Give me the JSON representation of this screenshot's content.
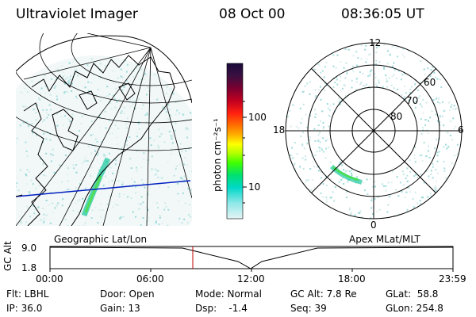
{
  "header": {
    "title": "Ultraviolet Imager",
    "date": "08 Oct 00",
    "time": "08:36:05 UT"
  },
  "colorbar": {
    "label": "photon cm⁻²s⁻¹",
    "ticks": [
      "100",
      "10"
    ],
    "colors": [
      "#1a0a3a",
      "#3a1040",
      "#7a0030",
      "#b00020",
      "#e00010",
      "#ff4000",
      "#ff8000",
      "#ffc000",
      "#ffff00",
      "#b0ff00",
      "#40ff00",
      "#00e060",
      "#00d8c0",
      "#80e8e8",
      "#d0f0f0"
    ]
  },
  "geo_map": {
    "caption": "Geographic Lat/Lon"
  },
  "polar_map": {
    "caption": "Apex MLat/MLT",
    "mlt_labels": [
      "12",
      "18",
      "6",
      "0"
    ],
    "lat_labels": [
      "60",
      "70",
      "80"
    ]
  },
  "altitude_plot": {
    "ylabel": "GC Alt",
    "yticks": [
      "9.0",
      "1.8"
    ],
    "xticks": [
      "00:00",
      "06:00",
      "12:00",
      "18:00",
      "23:59"
    ]
  },
  "info": {
    "filter": "Flt: LBHL",
    "door": "Door: Open",
    "mode": "Mode: Normal",
    "gc_alt": "GC Alt: 7.8 Re",
    "glat": "GLat:  58.8",
    "ip": "IP: 36.0",
    "gain": "Gain: 13",
    "dsp": "Dsp:    -1.4",
    "seq": "Seq: 39",
    "glon": "GLon: 254.8"
  }
}
